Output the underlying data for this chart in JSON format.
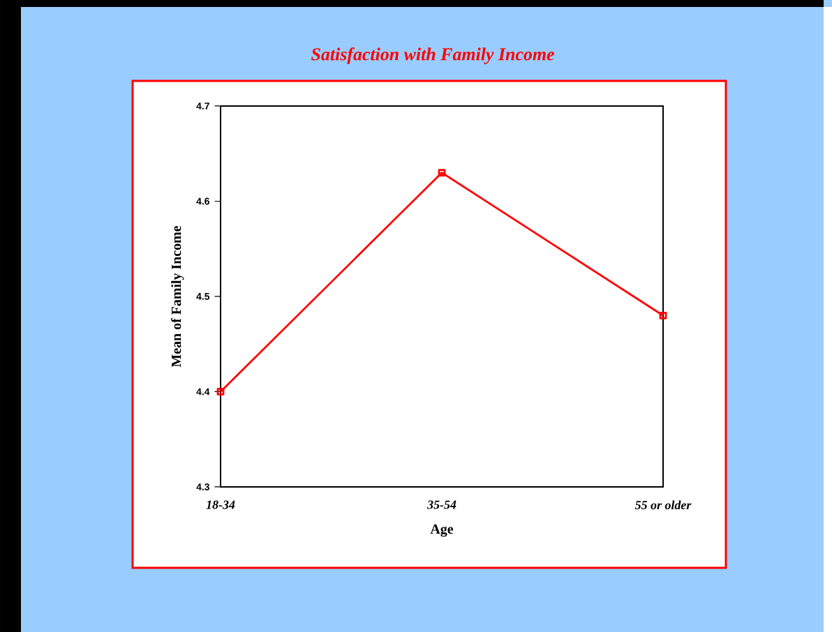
{
  "chart_data": {
    "type": "line",
    "title": "Satisfaction with Family Income",
    "xlabel": "Age",
    "ylabel": "Mean of Family Income",
    "categories": [
      "18-34",
      "35-54",
      "55 or older"
    ],
    "series": [
      {
        "color": "#ff0000",
        "values": [
          4.4,
          4.63,
          4.48
        ]
      }
    ],
    "ylim": [
      4.3,
      4.7
    ],
    "yticks": [
      4.3,
      4.4,
      4.5,
      4.6,
      4.7
    ],
    "marker": "square",
    "line_style": "solid"
  }
}
